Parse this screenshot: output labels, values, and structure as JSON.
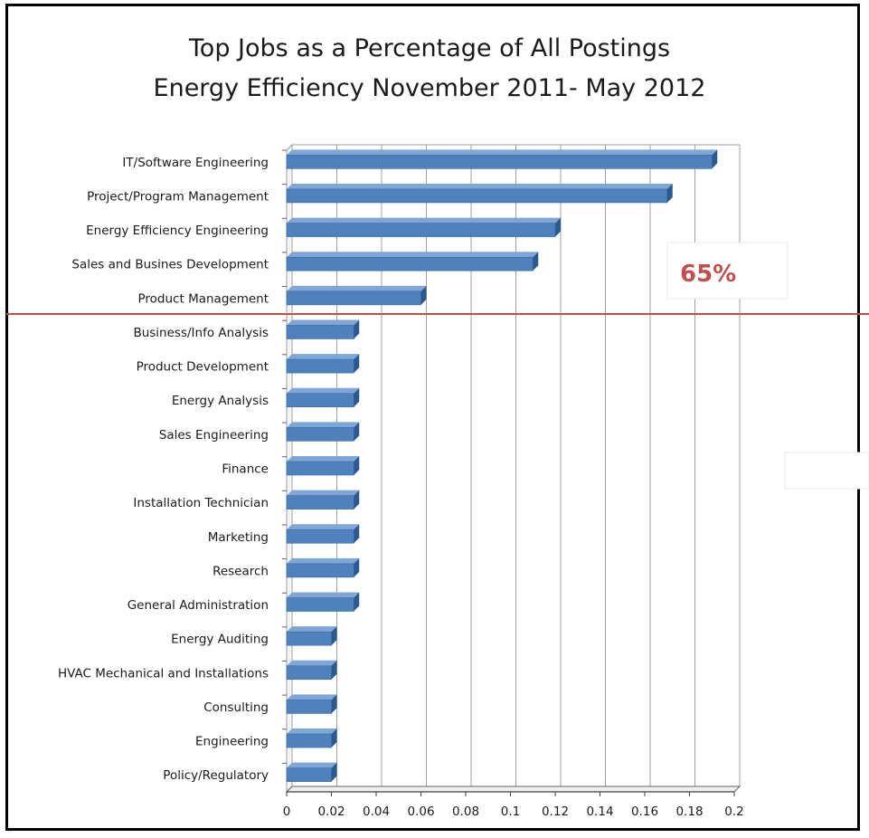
{
  "chart_data": {
    "type": "bar",
    "orientation": "horizontal",
    "title": "Top Jobs as a Percentage of All Postings",
    "subtitle": "Energy Efficiency November 2011- May 2012",
    "categories": [
      "IT/Software Engineering",
      "Project/Program Management",
      "Energy Efficiency Engineering",
      "Sales and Busines Development",
      "Product Management",
      "Business/Info Analysis",
      "Product Development",
      "Energy Analysis",
      "Sales Engineering",
      "Finance",
      "Installation Technician",
      "Marketing",
      "Research",
      "General Administration",
      "Energy Auditing",
      "HVAC Mechanical and Installations",
      "Consulting",
      "Engineering",
      "Policy/Regulatory"
    ],
    "values": [
      0.19,
      0.17,
      0.12,
      0.11,
      0.06,
      0.03,
      0.03,
      0.03,
      0.03,
      0.03,
      0.03,
      0.03,
      0.03,
      0.03,
      0.02,
      0.02,
      0.02,
      0.02,
      0.02
    ],
    "xlim": [
      0,
      0.2
    ],
    "xticks": [
      "0",
      "0.02",
      "0.04",
      "0.06",
      "0.08",
      "0.1",
      "0.12",
      "0.14",
      "0.16",
      "0.18",
      "0.2"
    ],
    "grid": true,
    "xlabel": "",
    "ylabel": "",
    "annotation": {
      "text": "65%",
      "after_category": "Product Management",
      "color": "#c0504d"
    },
    "colors": {
      "bar": "#4f81bd",
      "bar_dark": "#2c5a8f",
      "grid": "#a0a0a0",
      "divider": "#c0504d"
    }
  }
}
